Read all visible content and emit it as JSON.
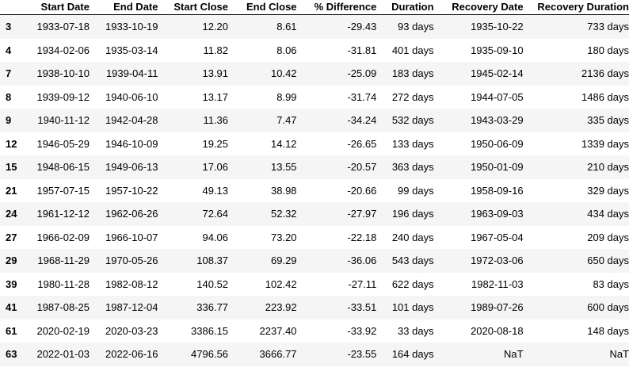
{
  "columns": {
    "index": "",
    "start_date": "Start Date",
    "end_date": "End Date",
    "start_close": "Start Close",
    "end_close": "End Close",
    "pct_diff": "% Difference",
    "duration": "Duration",
    "recovery_date": "Recovery Date",
    "recovery_duration": "Recovery Duration"
  },
  "rows": [
    {
      "index": "3",
      "start_date": "1933-07-18",
      "end_date": "1933-10-19",
      "start_close": "12.20",
      "end_close": "8.61",
      "pct_diff": "-29.43",
      "duration": "93 days",
      "recovery_date": "1935-10-22",
      "recovery_duration": "733 days"
    },
    {
      "index": "4",
      "start_date": "1934-02-06",
      "end_date": "1935-03-14",
      "start_close": "11.82",
      "end_close": "8.06",
      "pct_diff": "-31.81",
      "duration": "401 days",
      "recovery_date": "1935-09-10",
      "recovery_duration": "180 days"
    },
    {
      "index": "7",
      "start_date": "1938-10-10",
      "end_date": "1939-04-11",
      "start_close": "13.91",
      "end_close": "10.42",
      "pct_diff": "-25.09",
      "duration": "183 days",
      "recovery_date": "1945-02-14",
      "recovery_duration": "2136 days"
    },
    {
      "index": "8",
      "start_date": "1939-09-12",
      "end_date": "1940-06-10",
      "start_close": "13.17",
      "end_close": "8.99",
      "pct_diff": "-31.74",
      "duration": "272 days",
      "recovery_date": "1944-07-05",
      "recovery_duration": "1486 days"
    },
    {
      "index": "9",
      "start_date": "1940-11-12",
      "end_date": "1942-04-28",
      "start_close": "11.36",
      "end_close": "7.47",
      "pct_diff": "-34.24",
      "duration": "532 days",
      "recovery_date": "1943-03-29",
      "recovery_duration": "335 days"
    },
    {
      "index": "12",
      "start_date": "1946-05-29",
      "end_date": "1946-10-09",
      "start_close": "19.25",
      "end_close": "14.12",
      "pct_diff": "-26.65",
      "duration": "133 days",
      "recovery_date": "1950-06-09",
      "recovery_duration": "1339 days"
    },
    {
      "index": "15",
      "start_date": "1948-06-15",
      "end_date": "1949-06-13",
      "start_close": "17.06",
      "end_close": "13.55",
      "pct_diff": "-20.57",
      "duration": "363 days",
      "recovery_date": "1950-01-09",
      "recovery_duration": "210 days"
    },
    {
      "index": "21",
      "start_date": "1957-07-15",
      "end_date": "1957-10-22",
      "start_close": "49.13",
      "end_close": "38.98",
      "pct_diff": "-20.66",
      "duration": "99 days",
      "recovery_date": "1958-09-16",
      "recovery_duration": "329 days"
    },
    {
      "index": "24",
      "start_date": "1961-12-12",
      "end_date": "1962-06-26",
      "start_close": "72.64",
      "end_close": "52.32",
      "pct_diff": "-27.97",
      "duration": "196 days",
      "recovery_date": "1963-09-03",
      "recovery_duration": "434 days"
    },
    {
      "index": "27",
      "start_date": "1966-02-09",
      "end_date": "1966-10-07",
      "start_close": "94.06",
      "end_close": "73.20",
      "pct_diff": "-22.18",
      "duration": "240 days",
      "recovery_date": "1967-05-04",
      "recovery_duration": "209 days"
    },
    {
      "index": "29",
      "start_date": "1968-11-29",
      "end_date": "1970-05-26",
      "start_close": "108.37",
      "end_close": "69.29",
      "pct_diff": "-36.06",
      "duration": "543 days",
      "recovery_date": "1972-03-06",
      "recovery_duration": "650 days"
    },
    {
      "index": "39",
      "start_date": "1980-11-28",
      "end_date": "1982-08-12",
      "start_close": "140.52",
      "end_close": "102.42",
      "pct_diff": "-27.11",
      "duration": "622 days",
      "recovery_date": "1982-11-03",
      "recovery_duration": "83 days"
    },
    {
      "index": "41",
      "start_date": "1987-08-25",
      "end_date": "1987-12-04",
      "start_close": "336.77",
      "end_close": "223.92",
      "pct_diff": "-33.51",
      "duration": "101 days",
      "recovery_date": "1989-07-26",
      "recovery_duration": "600 days"
    },
    {
      "index": "61",
      "start_date": "2020-02-19",
      "end_date": "2020-03-23",
      "start_close": "3386.15",
      "end_close": "2237.40",
      "pct_diff": "-33.92",
      "duration": "33 days",
      "recovery_date": "2020-08-18",
      "recovery_duration": "148 days"
    },
    {
      "index": "63",
      "start_date": "2022-01-03",
      "end_date": "2022-06-16",
      "start_close": "4796.56",
      "end_close": "3666.77",
      "pct_diff": "-23.55",
      "duration": "164 days",
      "recovery_date": "NaT",
      "recovery_duration": "NaT"
    }
  ]
}
